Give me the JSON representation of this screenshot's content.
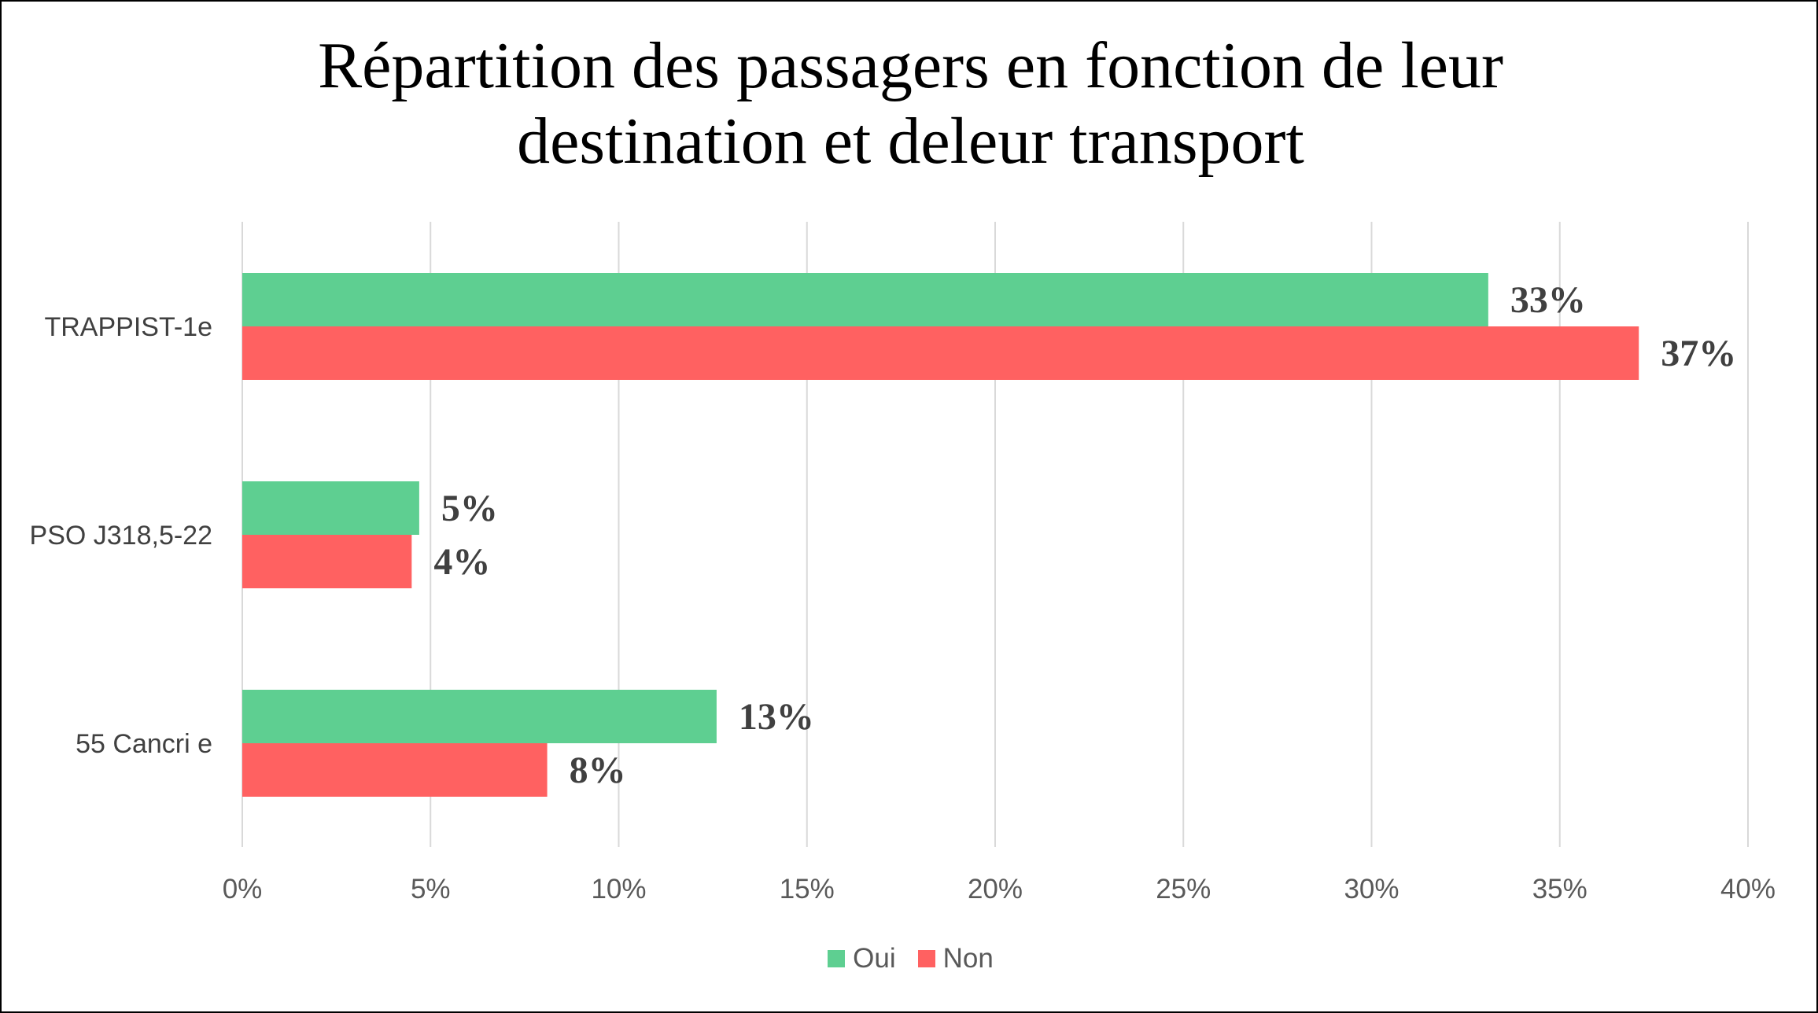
{
  "chart_data": {
    "type": "bar",
    "orientation": "horizontal",
    "title": "Répartition des passagers en fonction de leur destination et deleur transport",
    "title_lines": [
      "Répartition des passagers en fonction de leur",
      "destination et deleur transport"
    ],
    "categories": [
      "TRAPPIST-1e",
      "PSO J318,5-22",
      "55 Cancri e"
    ],
    "series": [
      {
        "name": "Oui",
        "color": "#5ecf91",
        "values": [
          33.1,
          4.7,
          12.6
        ],
        "labels": [
          "33%",
          "5%",
          "13%"
        ]
      },
      {
        "name": "Non",
        "color": "#ff6161",
        "values": [
          37.1,
          4.5,
          8.1
        ],
        "labels": [
          "37%",
          "4%",
          "8%"
        ]
      }
    ],
    "xlim": [
      0,
      40
    ],
    "x_ticks": [
      0,
      5,
      10,
      15,
      20,
      25,
      30,
      35,
      40
    ],
    "x_tick_labels": [
      "0%",
      "5%",
      "10%",
      "15%",
      "20%",
      "25%",
      "30%",
      "35%",
      "40%"
    ],
    "xlabel": "",
    "ylabel": "",
    "grid": "vertical",
    "legend_position": "bottom"
  }
}
